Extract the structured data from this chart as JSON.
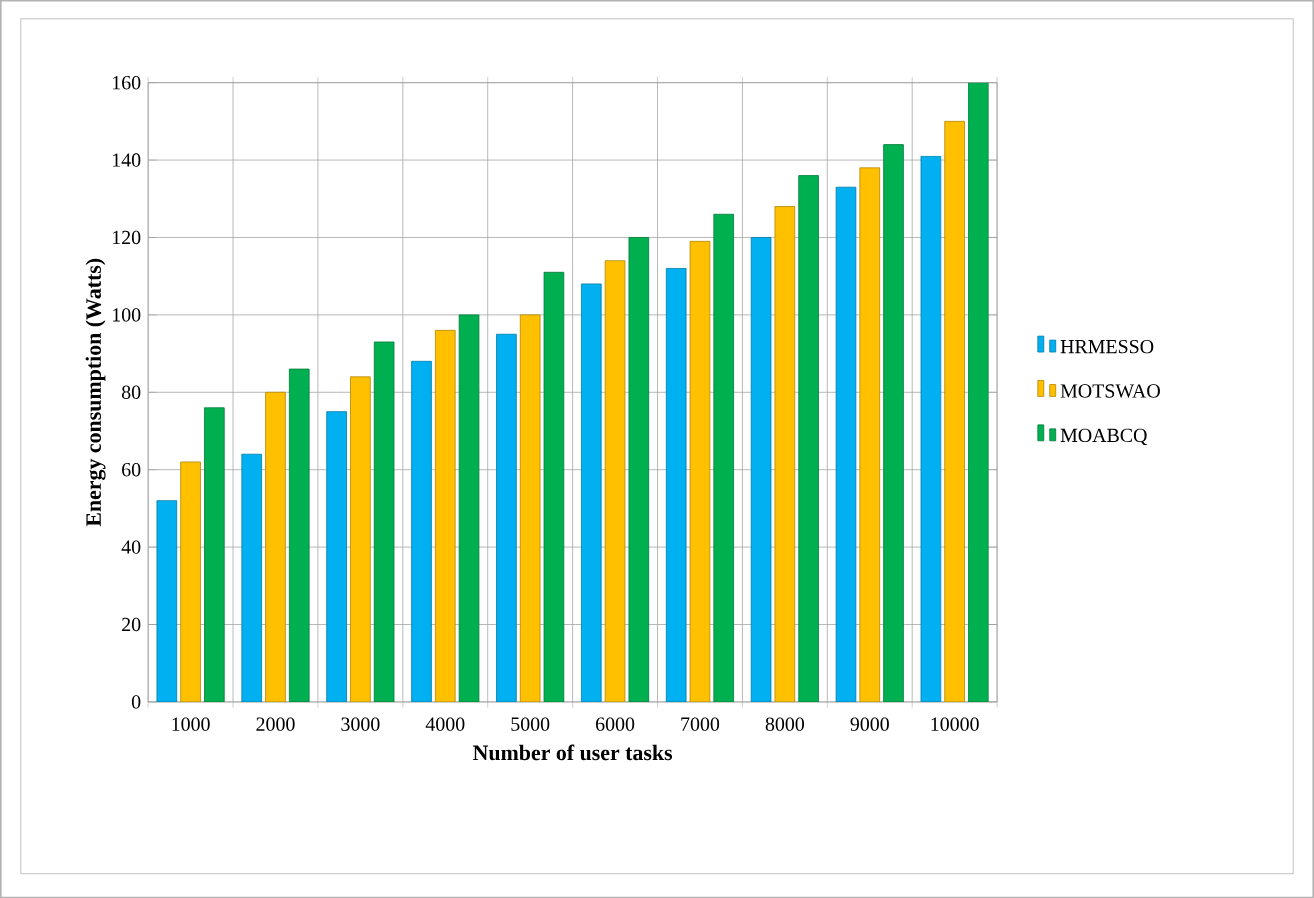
{
  "chart_data": {
    "type": "bar",
    "xlabel": "Number of user tasks",
    "ylabel": "Energy consumption (Watts)",
    "categories": [
      "1000",
      "2000",
      "3000",
      "4000",
      "5000",
      "6000",
      "7000",
      "8000",
      "9000",
      "10000"
    ],
    "series": [
      {
        "name": "HRMESSO",
        "color": "#00b0f0",
        "values": [
          52,
          64,
          75,
          88,
          95,
          108,
          112,
          120,
          133,
          141
        ]
      },
      {
        "name": "MOTSWAO",
        "color": "#ffc000",
        "values": [
          62,
          80,
          84,
          96,
          100,
          114,
          119,
          128,
          138,
          150
        ]
      },
      {
        "name": "MOABCQ",
        "color": "#00b050",
        "values": [
          76,
          86,
          93,
          100,
          111,
          120,
          126,
          136,
          144,
          160
        ]
      }
    ],
    "ylim": [
      0,
      160
    ],
    "yticks": [
      0,
      20,
      40,
      60,
      80,
      100,
      120,
      140,
      160
    ],
    "grid": true,
    "legend": "right"
  }
}
